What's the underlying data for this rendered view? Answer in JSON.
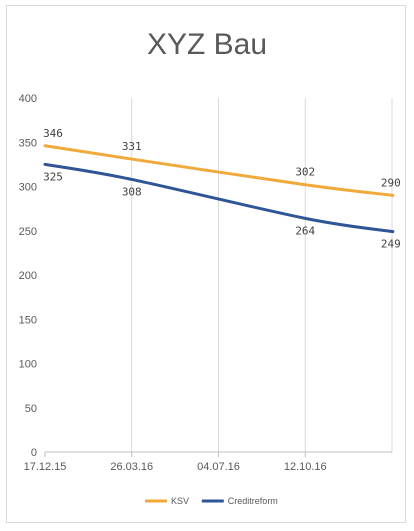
{
  "chart_data": {
    "type": "line",
    "title": "XYZ Bau",
    "xlabel": "",
    "ylabel": "",
    "ylim": [
      0,
      400
    ],
    "yticks": [
      0,
      50,
      100,
      150,
      200,
      250,
      300,
      350,
      400
    ],
    "xtick_labels": [
      "17.12.15",
      "26.03.16",
      "04.07.16",
      "12.10.16"
    ],
    "grid": "vertical",
    "legend_position": "bottom",
    "colors": {
      "ksv": "#f2a93b",
      "creditreform": "#2f5597"
    },
    "series": [
      {
        "name": "KSV",
        "color": "#f2a93b",
        "x": [
          "17.12.15",
          "26.03.16",
          "12.10.16",
          "21.01.17"
        ],
        "y": [
          346,
          331,
          302,
          290
        ],
        "labels": [
          "346",
          "331",
          "302",
          "290"
        ]
      },
      {
        "name": "Creditreform",
        "color": "#2f5597",
        "x": [
          "17.12.15",
          "26.03.16",
          "12.10.16",
          "21.01.17"
        ],
        "y": [
          325,
          308,
          264,
          249
        ],
        "labels": [
          "325",
          "308",
          "264",
          "249"
        ]
      }
    ],
    "legend": {
      "items": [
        "KSV",
        "Creditreform"
      ]
    }
  }
}
